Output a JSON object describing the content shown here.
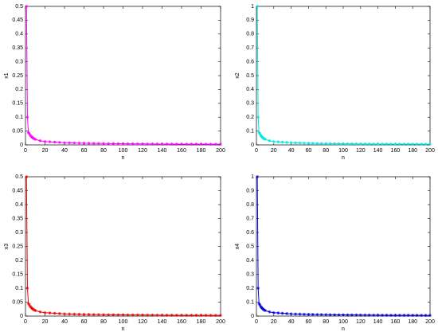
{
  "chart_data": [
    {
      "type": "line",
      "xlabel": "n",
      "ylabel": "x1",
      "color": "#ff00ff",
      "x": [
        1,
        2,
        3,
        4,
        5,
        6,
        7,
        8,
        9,
        10,
        15,
        20,
        25,
        30,
        35,
        40,
        45,
        50,
        55,
        60,
        65,
        70,
        75,
        80,
        85,
        90,
        95,
        100,
        105,
        110,
        115,
        120,
        125,
        130,
        135,
        140,
        145,
        150,
        155,
        160,
        165,
        170,
        175,
        180,
        185,
        190,
        195,
        200
      ],
      "values": [
        0.5,
        0.1,
        0.045,
        0.04,
        0.034,
        0.03,
        0.027,
        0.024,
        0.022,
        0.02,
        0.015,
        0.012,
        0.011,
        0.01,
        0.009,
        0.008,
        0.0075,
        0.007,
        0.0065,
        0.006,
        0.0058,
        0.0055,
        0.0052,
        0.005,
        0.0048,
        0.0046,
        0.0044,
        0.0042,
        0.004,
        0.004,
        0.0038,
        0.0037,
        0.0036,
        0.0035,
        0.0034,
        0.0033,
        0.0032,
        0.0031,
        0.003,
        0.003,
        0.0029,
        0.0028,
        0.0028,
        0.0027,
        0.0027,
        0.0026,
        0.0026,
        0.0025
      ],
      "xlim": [
        0,
        200
      ],
      "xticks": [
        0,
        20,
        40,
        60,
        80,
        100,
        120,
        140,
        160,
        180,
        200
      ],
      "ylim": [
        0,
        0.5
      ],
      "yticks": [
        0,
        0.05,
        0.1,
        0.15,
        0.2,
        0.25,
        0.3,
        0.35,
        0.4,
        0.45,
        0.5
      ]
    },
    {
      "type": "line",
      "xlabel": "n",
      "ylabel": "x2",
      "color": "#00e5e5",
      "x": [
        1,
        2,
        3,
        4,
        5,
        6,
        7,
        8,
        9,
        10,
        15,
        20,
        25,
        30,
        35,
        40,
        45,
        50,
        55,
        60,
        65,
        70,
        75,
        80,
        85,
        90,
        95,
        100,
        105,
        110,
        115,
        120,
        125,
        130,
        135,
        140,
        145,
        150,
        155,
        160,
        165,
        170,
        175,
        180,
        185,
        190,
        195,
        200
      ],
      "values": [
        1,
        0.2,
        0.09,
        0.08,
        0.068,
        0.06,
        0.054,
        0.048,
        0.044,
        0.04,
        0.03,
        0.024,
        0.022,
        0.02,
        0.018,
        0.016,
        0.015,
        0.014,
        0.013,
        0.012,
        0.0116,
        0.011,
        0.0104,
        0.01,
        0.0096,
        0.0092,
        0.0088,
        0.0084,
        0.008,
        0.008,
        0.0076,
        0.0074,
        0.0072,
        0.007,
        0.0068,
        0.0066,
        0.0064,
        0.0062,
        0.006,
        0.006,
        0.0058,
        0.0056,
        0.0056,
        0.0054,
        0.0054,
        0.0052,
        0.0052,
        0.005
      ],
      "xlim": [
        0,
        200
      ],
      "xticks": [
        0,
        20,
        40,
        60,
        80,
        100,
        120,
        140,
        160,
        180,
        200
      ],
      "ylim": [
        0,
        1
      ],
      "yticks": [
        0,
        0.1,
        0.2,
        0.3,
        0.4,
        0.5,
        0.6,
        0.7,
        0.8,
        0.9,
        1
      ]
    },
    {
      "type": "line",
      "xlabel": "n",
      "ylabel": "x3",
      "color": "#ee0000",
      "x": [
        1,
        2,
        3,
        4,
        5,
        6,
        7,
        8,
        9,
        10,
        15,
        20,
        25,
        30,
        35,
        40,
        45,
        50,
        55,
        60,
        65,
        70,
        75,
        80,
        85,
        90,
        95,
        100,
        105,
        110,
        115,
        120,
        125,
        130,
        135,
        140,
        145,
        150,
        155,
        160,
        165,
        170,
        175,
        180,
        185,
        190,
        195,
        200
      ],
      "values": [
        0.5,
        0.1,
        0.045,
        0.04,
        0.034,
        0.03,
        0.027,
        0.024,
        0.022,
        0.02,
        0.015,
        0.012,
        0.011,
        0.01,
        0.009,
        0.008,
        0.0075,
        0.007,
        0.0065,
        0.006,
        0.0058,
        0.0055,
        0.0052,
        0.005,
        0.0048,
        0.0046,
        0.0044,
        0.0042,
        0.004,
        0.004,
        0.0038,
        0.0037,
        0.0036,
        0.0035,
        0.0034,
        0.0033,
        0.0032,
        0.0031,
        0.003,
        0.003,
        0.0029,
        0.0028,
        0.0028,
        0.0027,
        0.0027,
        0.0026,
        0.0026,
        0.0025
      ],
      "xlim": [
        0,
        200
      ],
      "xticks": [
        0,
        20,
        40,
        60,
        80,
        100,
        120,
        140,
        160,
        180,
        200
      ],
      "ylim": [
        0,
        0.5
      ],
      "yticks": [
        0,
        0.05,
        0.1,
        0.15,
        0.2,
        0.25,
        0.3,
        0.35,
        0.4,
        0.45,
        0.5
      ]
    },
    {
      "type": "line",
      "xlabel": "n",
      "ylabel": "x4",
      "color": "#0000dd",
      "x": [
        1,
        2,
        3,
        4,
        5,
        6,
        7,
        8,
        9,
        10,
        15,
        20,
        25,
        30,
        35,
        40,
        45,
        50,
        55,
        60,
        65,
        70,
        75,
        80,
        85,
        90,
        95,
        100,
        105,
        110,
        115,
        120,
        125,
        130,
        135,
        140,
        145,
        150,
        155,
        160,
        165,
        170,
        175,
        180,
        185,
        190,
        195,
        200
      ],
      "values": [
        1,
        0.2,
        0.09,
        0.08,
        0.068,
        0.06,
        0.054,
        0.048,
        0.044,
        0.04,
        0.03,
        0.024,
        0.022,
        0.02,
        0.018,
        0.016,
        0.015,
        0.014,
        0.013,
        0.012,
        0.0116,
        0.011,
        0.0104,
        0.01,
        0.0096,
        0.0092,
        0.0088,
        0.0084,
        0.008,
        0.008,
        0.0076,
        0.0074,
        0.0072,
        0.007,
        0.0068,
        0.0066,
        0.0064,
        0.0062,
        0.006,
        0.006,
        0.0058,
        0.0056,
        0.0056,
        0.0054,
        0.0054,
        0.0052,
        0.0052,
        0.005
      ],
      "xlim": [
        0,
        200
      ],
      "xticks": [
        0,
        20,
        40,
        60,
        80,
        100,
        120,
        140,
        160,
        180,
        200
      ],
      "ylim": [
        0,
        1
      ],
      "yticks": [
        0,
        0.1,
        0.2,
        0.3,
        0.4,
        0.5,
        0.6,
        0.7,
        0.8,
        0.9,
        1
      ]
    }
  ]
}
